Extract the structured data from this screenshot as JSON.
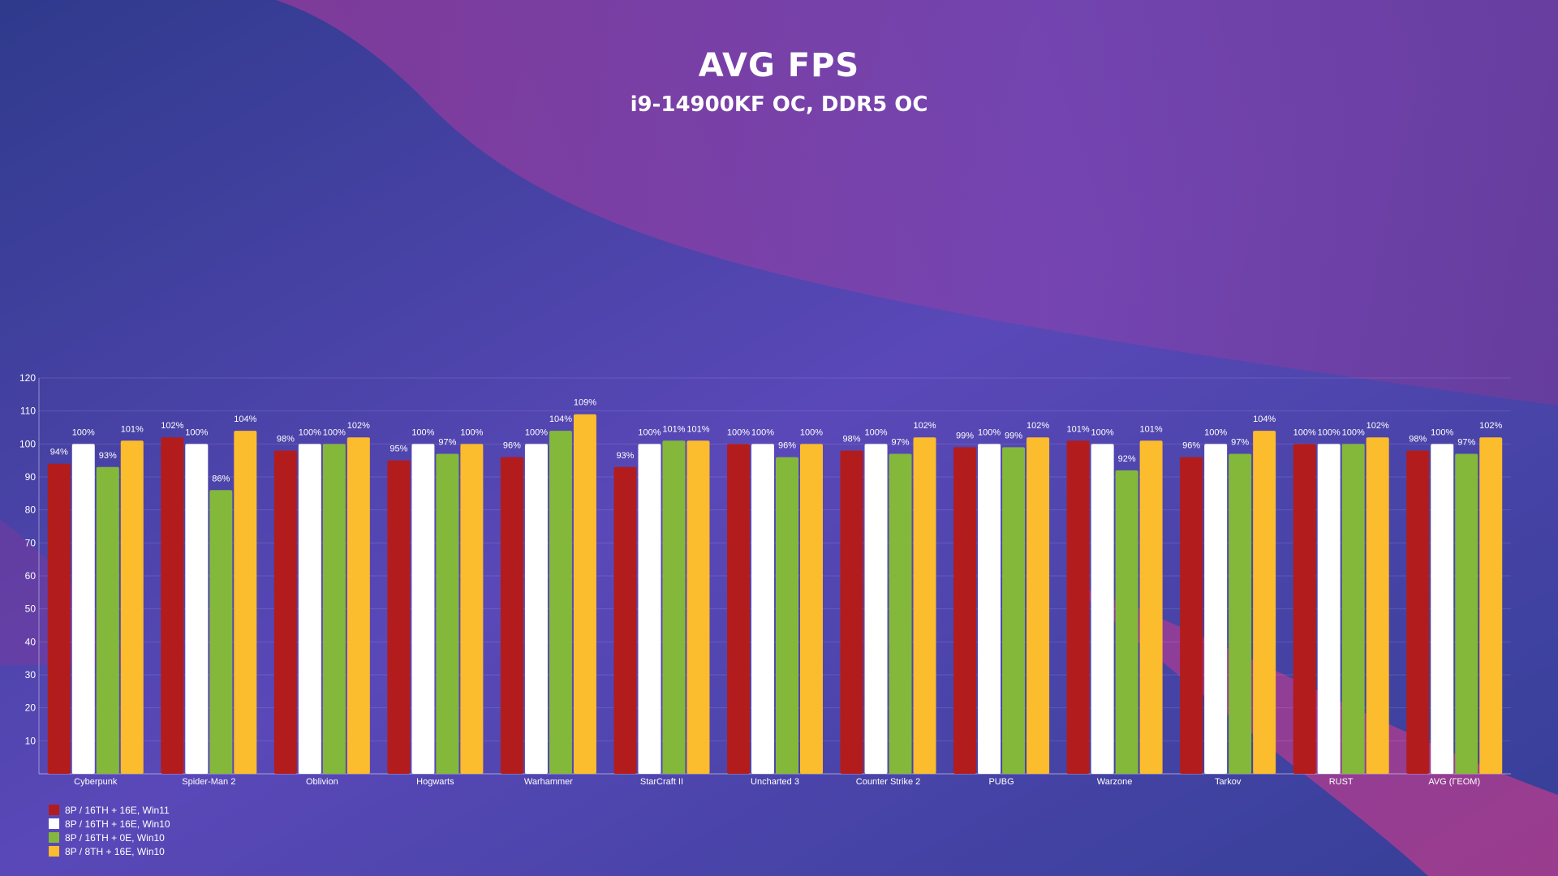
{
  "title": "AVG FPS",
  "subtitle": "i9-14900KF OC, DDR5 OC",
  "chart_data": {
    "type": "bar",
    "title": "AVG FPS",
    "subtitle": "i9-14900KF OC, DDR5 OC",
    "categories": [
      "Cyberpunk",
      "Spider-Man 2",
      "Oblivion",
      "Hogwarts",
      "Warhammer",
      "StarCraft II",
      "Uncharted 3",
      "Counter Strike 2",
      "PUBG",
      "Warzone",
      "Tarkov",
      "RUST",
      "AVG (ГЕОМ)"
    ],
    "series": [
      {
        "name": "8P / 16TH + 16E, Win11",
        "color": "#b31c1c",
        "values": [
          94,
          102,
          98,
          95,
          96,
          93,
          100,
          98,
          99,
          101,
          96,
          100,
          98
        ]
      },
      {
        "name": "8P / 16TH + 16E, Win10",
        "color": "#ffffff",
        "values": [
          100,
          100,
          100,
          100,
          100,
          100,
          100,
          100,
          100,
          100,
          100,
          100,
          100
        ]
      },
      {
        "name": "8P / 16TH + 0E, Win10",
        "color": "#84b83a",
        "values": [
          93,
          86,
          100,
          97,
          104,
          101,
          96,
          97,
          99,
          92,
          97,
          100,
          97
        ]
      },
      {
        "name": "8P / 8TH + 16E, Win10",
        "color": "#fbbc2e",
        "values": [
          101,
          104,
          102,
          100,
          109,
          101,
          100,
          102,
          102,
          101,
          104,
          102,
          102
        ]
      }
    ],
    "value_suffix": "%",
    "ylim": [
      0,
      120
    ],
    "yticks": [
      10,
      20,
      30,
      40,
      50,
      60,
      70,
      80,
      90,
      100,
      110,
      120
    ],
    "xlabel": "",
    "ylabel": "",
    "grid": true,
    "legend_position": "bottom-left"
  }
}
